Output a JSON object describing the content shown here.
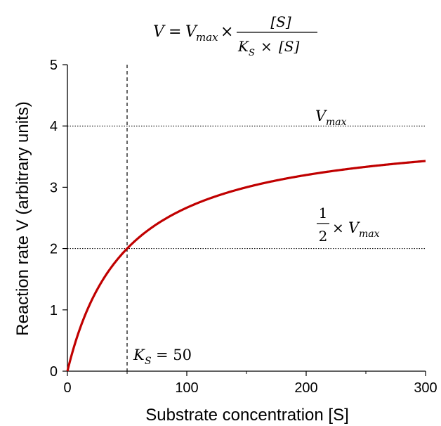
{
  "chart_data": {
    "type": "line",
    "title_formula": {
      "lhs": "V",
      "equals": "=",
      "vmax_base": "V",
      "vmax_sub": "max",
      "times": "×",
      "numerator": "[S]",
      "den_base": "K",
      "den_sub": "S",
      "den_times": "×",
      "den_s": "[S]"
    },
    "xlabel": "Substrate concentration [S]",
    "ylabel": "Reaction rate V (arbitrary units)",
    "xlim": [
      0,
      300
    ],
    "ylim": [
      0,
      5
    ],
    "x_ticks": [
      0,
      100,
      200,
      300
    ],
    "x_minor_ticks": [
      50,
      150,
      250
    ],
    "y_ticks": [
      0,
      1,
      2,
      3,
      4,
      5
    ],
    "vmax": 4,
    "ks": 50,
    "curve_color": "#c00000",
    "series": [
      {
        "x": [
          0,
          10,
          25,
          50,
          75,
          100,
          150,
          200,
          250,
          300
        ],
        "y": [
          0,
          0.667,
          1.333,
          2.0,
          2.4,
          2.667,
          3.0,
          3.2,
          3.333,
          3.429
        ]
      }
    ],
    "reference_lines": {
      "vmax_y": 4,
      "half_vmax_y": 2,
      "ks_x": 50
    },
    "annotations": {
      "vmax_label": {
        "base": "V",
        "sub": "max"
      },
      "half_label": {
        "num": "1",
        "den": "2",
        "times": "×",
        "base": "V",
        "sub": "max"
      },
      "ks_label": {
        "base": "K",
        "sub": "S",
        "eq": "= 50"
      }
    }
  }
}
